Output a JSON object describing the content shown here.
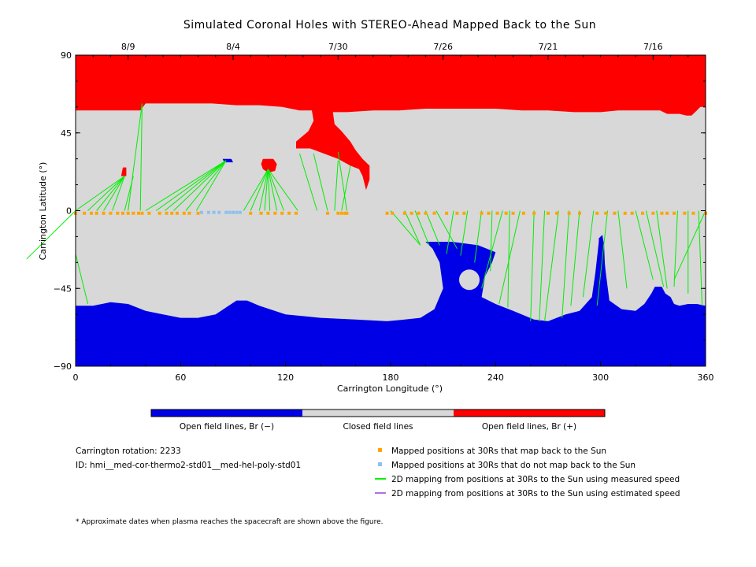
{
  "chart_data": {
    "type": "map",
    "title": "Simulated Coronal Holes with STEREO-Ahead Mapped Back to the Sun",
    "xlabel": "Carrington Longitude (°)",
    "ylabel": "Carrington Latitude (°)",
    "xlim": [
      0,
      360
    ],
    "ylim": [
      -90,
      90
    ],
    "x_ticks": [
      0,
      60,
      120,
      180,
      240,
      300,
      360
    ],
    "y_ticks": [
      90,
      45,
      0,
      -45,
      -90
    ],
    "y_tick_labels": [
      "90",
      "45",
      "0",
      "−45",
      "−90"
    ],
    "top_axis_dates": [
      {
        "label": "8/9",
        "lon": 30
      },
      {
        "label": "8/4",
        "lon": 90
      },
      {
        "label": "7/30",
        "lon": 150
      },
      {
        "label": "7/26",
        "lon": 210
      },
      {
        "label": "7/21",
        "lon": 270
      },
      {
        "label": "7/16",
        "lon": 330
      }
    ],
    "colors": {
      "open_negative": "#0000e6",
      "closed": "#d8d8d8",
      "open_positive": "#ff0000",
      "mapped": "#ffa500",
      "not_mapped": "#8ec0f0",
      "measured_speed": "#00ee00",
      "estimated_speed": "#b070e0"
    },
    "colorbar": {
      "labels": [
        "Open field lines, Br (−)",
        "Closed field lines",
        "Open field lines, Br (+)"
      ]
    },
    "mapped_points_lon": [
      0,
      5,
      9,
      12,
      16,
      20,
      24,
      27,
      30,
      33,
      36,
      38,
      42,
      48,
      52,
      55,
      58,
      62,
      65,
      70,
      100,
      106,
      110,
      114,
      118,
      122,
      126,
      144,
      150,
      152,
      154,
      155,
      178,
      181,
      188,
      192,
      196,
      200,
      205,
      212,
      218,
      222,
      232,
      236,
      241,
      246,
      250,
      256,
      262,
      270,
      275,
      282,
      288,
      298,
      303,
      308,
      314,
      318,
      324,
      330,
      335,
      338,
      342,
      348,
      353,
      360
    ],
    "not_mapped_points_lon": [
      72,
      76,
      79,
      82,
      86,
      88,
      90,
      92,
      94
    ],
    "mapping_lines": [
      [
        0,
        0,
        -28,
        -28
      ],
      [
        0,
        0,
        28,
        20
      ],
      [
        7,
        0,
        28,
        20
      ],
      [
        12,
        0,
        28,
        20
      ],
      [
        16,
        0,
        28,
        20
      ],
      [
        21,
        0,
        28,
        20
      ],
      [
        28,
        0,
        33,
        20
      ],
      [
        30,
        0,
        38,
        62
      ],
      [
        37,
        0,
        38,
        62
      ],
      [
        40,
        0,
        86,
        29
      ],
      [
        46,
        0,
        86,
        29
      ],
      [
        51,
        0,
        86,
        29
      ],
      [
        56,
        0,
        86,
        29
      ],
      [
        63,
        0,
        86,
        29
      ],
      [
        69,
        0,
        86,
        29
      ],
      [
        96,
        0,
        110,
        24
      ],
      [
        100,
        0,
        110,
        24
      ],
      [
        105,
        0,
        110,
        24
      ],
      [
        108,
        0,
        110,
        24
      ],
      [
        111,
        0,
        110,
        24
      ],
      [
        115,
        0,
        110,
        24
      ],
      [
        119,
        0,
        110,
        24
      ],
      [
        127,
        0,
        110,
        24
      ],
      [
        138,
        0,
        128,
        33
      ],
      [
        144,
        0,
        136,
        33
      ],
      [
        148,
        0,
        150,
        29
      ],
      [
        152,
        0,
        157,
        26
      ],
      [
        155,
        0,
        150,
        34
      ],
      [
        180,
        0,
        197,
        -20
      ],
      [
        188,
        0,
        197,
        -20
      ],
      [
        194,
        0,
        202,
        -20
      ],
      [
        200,
        0,
        208,
        -20
      ],
      [
        206,
        0,
        218,
        -22
      ],
      [
        216,
        0,
        212,
        -25
      ],
      [
        224,
        0,
        220,
        -26
      ],
      [
        232,
        0,
        228,
        -30
      ],
      [
        238,
        0,
        237,
        -35
      ],
      [
        244,
        0,
        232,
        -45
      ],
      [
        248,
        0,
        247,
        -56
      ],
      [
        254,
        0,
        242,
        -54
      ],
      [
        262,
        0,
        260,
        -64
      ],
      [
        268,
        0,
        265,
        -64
      ],
      [
        276,
        0,
        268,
        -64
      ],
      [
        282,
        0,
        278,
        -62
      ],
      [
        288,
        0,
        283,
        -55
      ],
      [
        296,
        0,
        290,
        -50
      ],
      [
        304,
        0,
        298,
        -55
      ],
      [
        310,
        0,
        315,
        -45
      ],
      [
        320,
        0,
        330,
        -40
      ],
      [
        326,
        0,
        336,
        -44
      ],
      [
        332,
        0,
        338,
        -45
      ],
      [
        344,
        0,
        342,
        -44
      ],
      [
        350,
        0,
        350,
        -48
      ],
      [
        356,
        0,
        358,
        -55
      ],
      [
        360,
        0,
        342,
        -40
      ],
      [
        0,
        -25,
        7,
        -54
      ]
    ]
  },
  "legend": {
    "carrington_rotation": "Carrington rotation: 2233",
    "model_id": "ID: hmi__med-cor-thermo2-std01__med-hel-poly-std01",
    "items": [
      "Mapped positions at 30Rs that map back to the Sun",
      "Mapped positions at 30Rs that do not map back to the Sun",
      "2D mapping from positions at 30Rs to the Sun using measured speed",
      "2D mapping from positions at 30Rs to the Sun using estimated speed"
    ],
    "footnote": "* Approximate dates when plasma reaches the spacecraft are shown above the figure."
  }
}
